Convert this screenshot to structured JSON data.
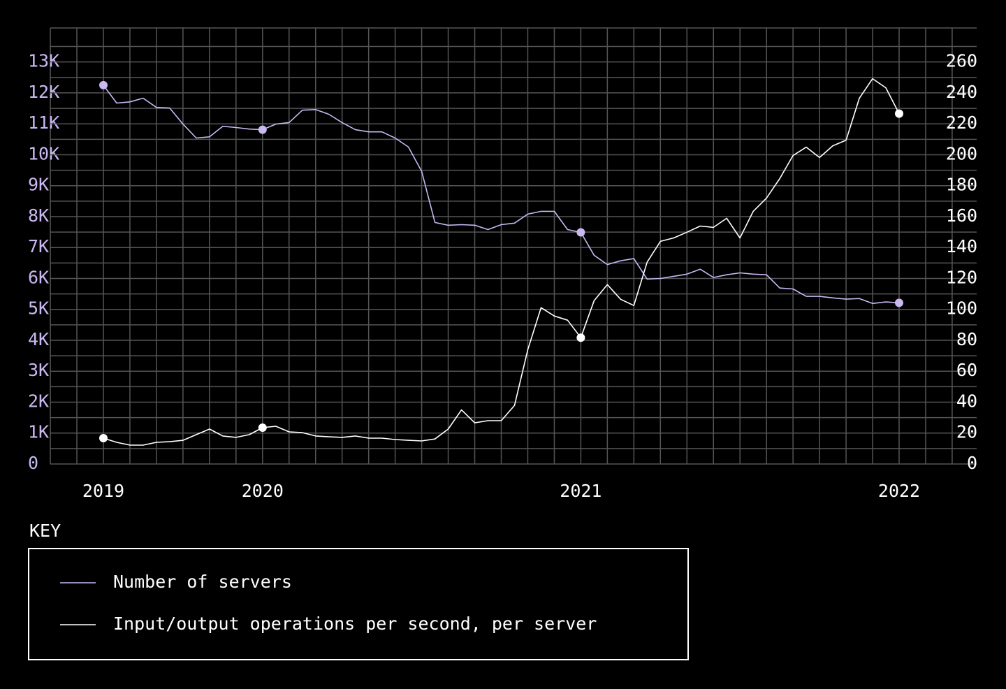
{
  "chart_data": {
    "type": "line",
    "categories": [
      "2019",
      null,
      null,
      null,
      null,
      null,
      null,
      null,
      null,
      null,
      null,
      null,
      "2020",
      null,
      null,
      null,
      null,
      null,
      null,
      null,
      null,
      null,
      null,
      null,
      null,
      null,
      null,
      null,
      null,
      null,
      null,
      null,
      null,
      null,
      null,
      null,
      "2021",
      null,
      null,
      null,
      null,
      null,
      null,
      null,
      null,
      null,
      null,
      null,
      null,
      null,
      null,
      null,
      null,
      null,
      null,
      null,
      null,
      null,
      null,
      null,
      "2022"
    ],
    "series": [
      {
        "name": "Number of servers",
        "color": "#c9b8f2",
        "axis": "y",
        "values": [
          12250,
          11670,
          11710,
          11830,
          11530,
          11510,
          10990,
          10540,
          10580,
          10920,
          10880,
          10830,
          10810,
          10990,
          11040,
          11440,
          11460,
          11310,
          11040,
          10810,
          10740,
          10740,
          10540,
          10250,
          9460,
          7810,
          7720,
          7740,
          7720,
          7580,
          7740,
          7790,
          8080,
          8170,
          8170,
          7580,
          7490,
          6750,
          6450,
          6570,
          6640,
          5980,
          6000,
          6070,
          6140,
          6300,
          6030,
          6120,
          6180,
          6140,
          6120,
          5690,
          5660,
          5420,
          5420,
          5370,
          5330,
          5350,
          5190,
          5240,
          5210
        ]
      },
      {
        "name": "Input/output operations per second, per server",
        "color": "#ffffff",
        "axis": "y2",
        "values": [
          16.7,
          14.0,
          12.2,
          12.2,
          14.0,
          14.4,
          15.3,
          19.0,
          22.6,
          18.1,
          17.2,
          19.0,
          23.5,
          24.4,
          20.8,
          20.3,
          18.1,
          17.6,
          17.2,
          18.1,
          16.7,
          16.7,
          15.8,
          15.3,
          14.9,
          16.2,
          22.6,
          35,
          26.6,
          28.0,
          28.0,
          37.9,
          74.0,
          101.1,
          95.7,
          93.0,
          81.7,
          105.6,
          116.0,
          106.5,
          102.5,
          130.5,
          144.0,
          146.2,
          149.9,
          153.9,
          153.0,
          158.9,
          146.2,
          163.4,
          172.0,
          184.6,
          199.5,
          204.9,
          198.2,
          205.8,
          209.4,
          236.5,
          249.2,
          243.3,
          226.6
        ]
      }
    ],
    "ylim": [
      0,
      14100
    ],
    "yticks": [
      0,
      {
        "value": 1000,
        "label": "1K"
      },
      {
        "value": 2000,
        "label": "2K"
      },
      {
        "value": 3000,
        "label": "3K"
      },
      {
        "value": 4000,
        "label": "4K"
      },
      {
        "value": 5000,
        "label": "5K"
      },
      {
        "value": 6000,
        "label": "6K"
      },
      {
        "value": 7000,
        "label": "7K"
      },
      {
        "value": 8000,
        "label": "8K"
      },
      {
        "value": 9000,
        "label": "9K"
      },
      {
        "value": 10000,
        "label": "10K"
      },
      {
        "value": 11000,
        "label": "11K"
      },
      {
        "value": 12000,
        "label": "12K"
      },
      {
        "value": 13000,
        "label": "13K"
      }
    ],
    "y2lim": [
      0,
      282
    ],
    "y2ticks": [
      0,
      20,
      40,
      60,
      80,
      100,
      120,
      140,
      160,
      180,
      200,
      220,
      240,
      260
    ],
    "grid": true,
    "legend_title": "KEY",
    "legend": "bottom-left"
  }
}
